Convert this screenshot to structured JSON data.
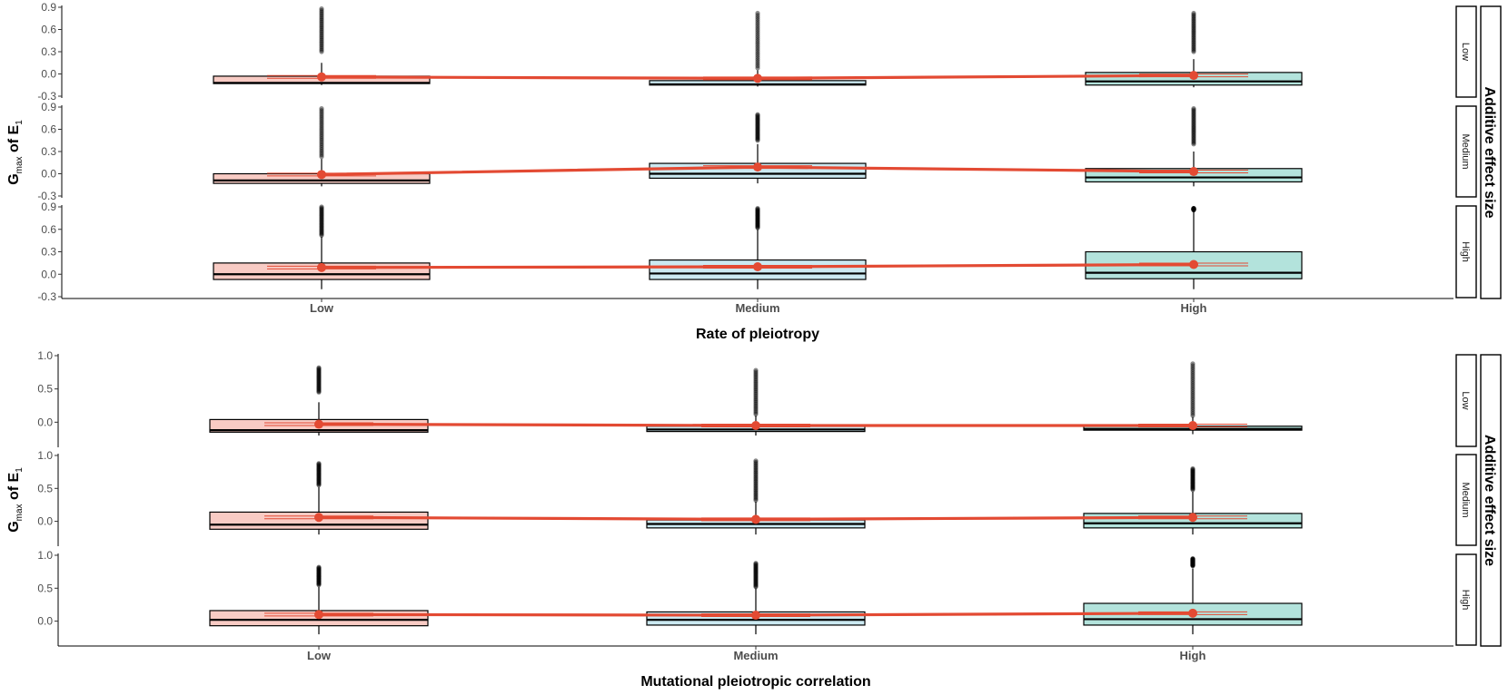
{
  "chart_data": [
    {
      "type": "box",
      "xlabel": "Rate of pleiotropy",
      "ylabel_parts": {
        "g": "G",
        "sub": "max",
        "of": "of",
        "e": "E",
        "esub": "1"
      },
      "facet_title": "Additive effect size",
      "categories": [
        "Low",
        "Medium",
        "High"
      ],
      "facets": [
        "Low",
        "Medium",
        "High"
      ],
      "yticks": [
        "0.9",
        "0.6",
        "0.3",
        "0.0",
        "-0.3"
      ],
      "ylim": [
        -0.3,
        0.9
      ],
      "fill_colors": [
        "#f8cbc4",
        "#cbe9f1",
        "#b3e3dc"
      ],
      "mean_color": "#e34a33",
      "panels": [
        {
          "facet": "Low",
          "boxes": [
            {
              "q1": -0.13,
              "median": -0.12,
              "q3": -0.03,
              "whisker_low": -0.15,
              "whisker_high": 0.15,
              "outlier_max": 0.88,
              "outlier_start": 0.3,
              "mean": -0.04
            },
            {
              "q1": -0.15,
              "median": -0.14,
              "q3": -0.09,
              "whisker_low": -0.17,
              "whisker_high": 0.05,
              "outlier_max": 0.82,
              "outlier_start": 0.08,
              "mean": -0.06
            },
            {
              "q1": -0.15,
              "median": -0.1,
              "q3": 0.02,
              "whisker_low": -0.18,
              "whisker_high": 0.2,
              "outlier_max": 0.82,
              "outlier_start": 0.3,
              "mean": -0.02
            }
          ]
        },
        {
          "facet": "Medium",
          "boxes": [
            {
              "q1": -0.13,
              "median": -0.09,
              "q3": 0.0,
              "whisker_low": -0.17,
              "whisker_high": 0.2,
              "outlier_max": 0.88,
              "outlier_start": 0.23,
              "mean": -0.01
            },
            {
              "q1": -0.06,
              "median": 0.0,
              "q3": 0.14,
              "whisker_low": -0.13,
              "whisker_high": 0.4,
              "outlier_max": 0.8,
              "outlier_start": 0.45,
              "mean": 0.09
            },
            {
              "q1": -0.11,
              "median": -0.05,
              "q3": 0.07,
              "whisker_low": -0.17,
              "whisker_high": 0.3,
              "outlier_max": 0.88,
              "outlier_start": 0.4,
              "mean": 0.03
            }
          ]
        },
        {
          "facet": "High",
          "boxes": [
            {
              "q1": -0.07,
              "median": 0.0,
              "q3": 0.15,
              "whisker_low": -0.2,
              "whisker_high": 0.5,
              "outlier_max": 0.9,
              "outlier_start": 0.52,
              "mean": 0.09
            },
            {
              "q1": -0.07,
              "median": 0.01,
              "q3": 0.19,
              "whisker_low": -0.2,
              "whisker_high": 0.6,
              "outlier_max": 0.88,
              "outlier_start": 0.62,
              "mean": 0.1
            },
            {
              "q1": -0.06,
              "median": 0.02,
              "q3": 0.3,
              "whisker_low": -0.2,
              "whisker_high": 0.84,
              "outlier_max": 0.88,
              "outlier_start": 0.86,
              "mean": 0.13
            }
          ]
        }
      ]
    },
    {
      "type": "box",
      "xlabel": "Mutational pleiotropic correlation",
      "ylabel_parts": {
        "g": "G",
        "sub": "max",
        "of": "of",
        "e": "E",
        "esub": "1"
      },
      "facet_title": "Additive effect size",
      "categories": [
        "Low",
        "Medium",
        "High"
      ],
      "facets": [
        "Low",
        "Medium",
        "High"
      ],
      "yticks": [
        "1.0",
        "0.5",
        "0.0"
      ],
      "ylim": [
        -0.35,
        1.0
      ],
      "fill_colors": [
        "#f8cbc4",
        "#cbe9f1",
        "#b3e3dc"
      ],
      "mean_color": "#e34a33",
      "panels": [
        {
          "facet": "Low",
          "boxes": [
            {
              "q1": -0.15,
              "median": -0.12,
              "q3": 0.04,
              "whisker_low": -0.2,
              "whisker_high": 0.3,
              "outlier_max": 0.82,
              "outlier_start": 0.45,
              "mean": -0.03
            },
            {
              "q1": -0.14,
              "median": -0.11,
              "q3": -0.06,
              "whisker_low": -0.2,
              "whisker_high": 0.1,
              "outlier_max": 0.78,
              "outlier_start": 0.12,
              "mean": -0.05
            },
            {
              "q1": -0.12,
              "median": -0.1,
              "q3": -0.06,
              "whisker_low": -0.18,
              "whisker_high": 0.08,
              "outlier_max": 0.88,
              "outlier_start": 0.1,
              "mean": -0.05
            }
          ]
        },
        {
          "facet": "Medium",
          "boxes": [
            {
              "q1": -0.12,
              "median": -0.05,
              "q3": 0.14,
              "whisker_low": -0.2,
              "whisker_high": 0.52,
              "outlier_max": 0.88,
              "outlier_start": 0.55,
              "mean": 0.06
            },
            {
              "q1": -0.1,
              "median": -0.04,
              "q3": 0.02,
              "whisker_low": -0.2,
              "whisker_high": 0.3,
              "outlier_max": 0.92,
              "outlier_start": 0.32,
              "mean": 0.03
            },
            {
              "q1": -0.1,
              "median": -0.03,
              "q3": 0.12,
              "whisker_low": -0.2,
              "whisker_high": 0.45,
              "outlier_max": 0.8,
              "outlier_start": 0.48,
              "mean": 0.06
            }
          ]
        },
        {
          "facet": "High",
          "boxes": [
            {
              "q1": -0.07,
              "median": 0.02,
              "q3": 0.16,
              "whisker_low": -0.2,
              "whisker_high": 0.52,
              "outlier_max": 0.82,
              "outlier_start": 0.55,
              "mean": 0.1
            },
            {
              "q1": -0.06,
              "median": 0.02,
              "q3": 0.14,
              "whisker_low": -0.2,
              "whisker_high": 0.5,
              "outlier_max": 0.88,
              "outlier_start": 0.52,
              "mean": 0.09
            },
            {
              "q1": -0.06,
              "median": 0.03,
              "q3": 0.27,
              "whisker_low": -0.2,
              "whisker_high": 0.8,
              "outlier_max": 0.95,
              "outlier_start": 0.84,
              "mean": 0.12
            }
          ]
        }
      ]
    }
  ]
}
